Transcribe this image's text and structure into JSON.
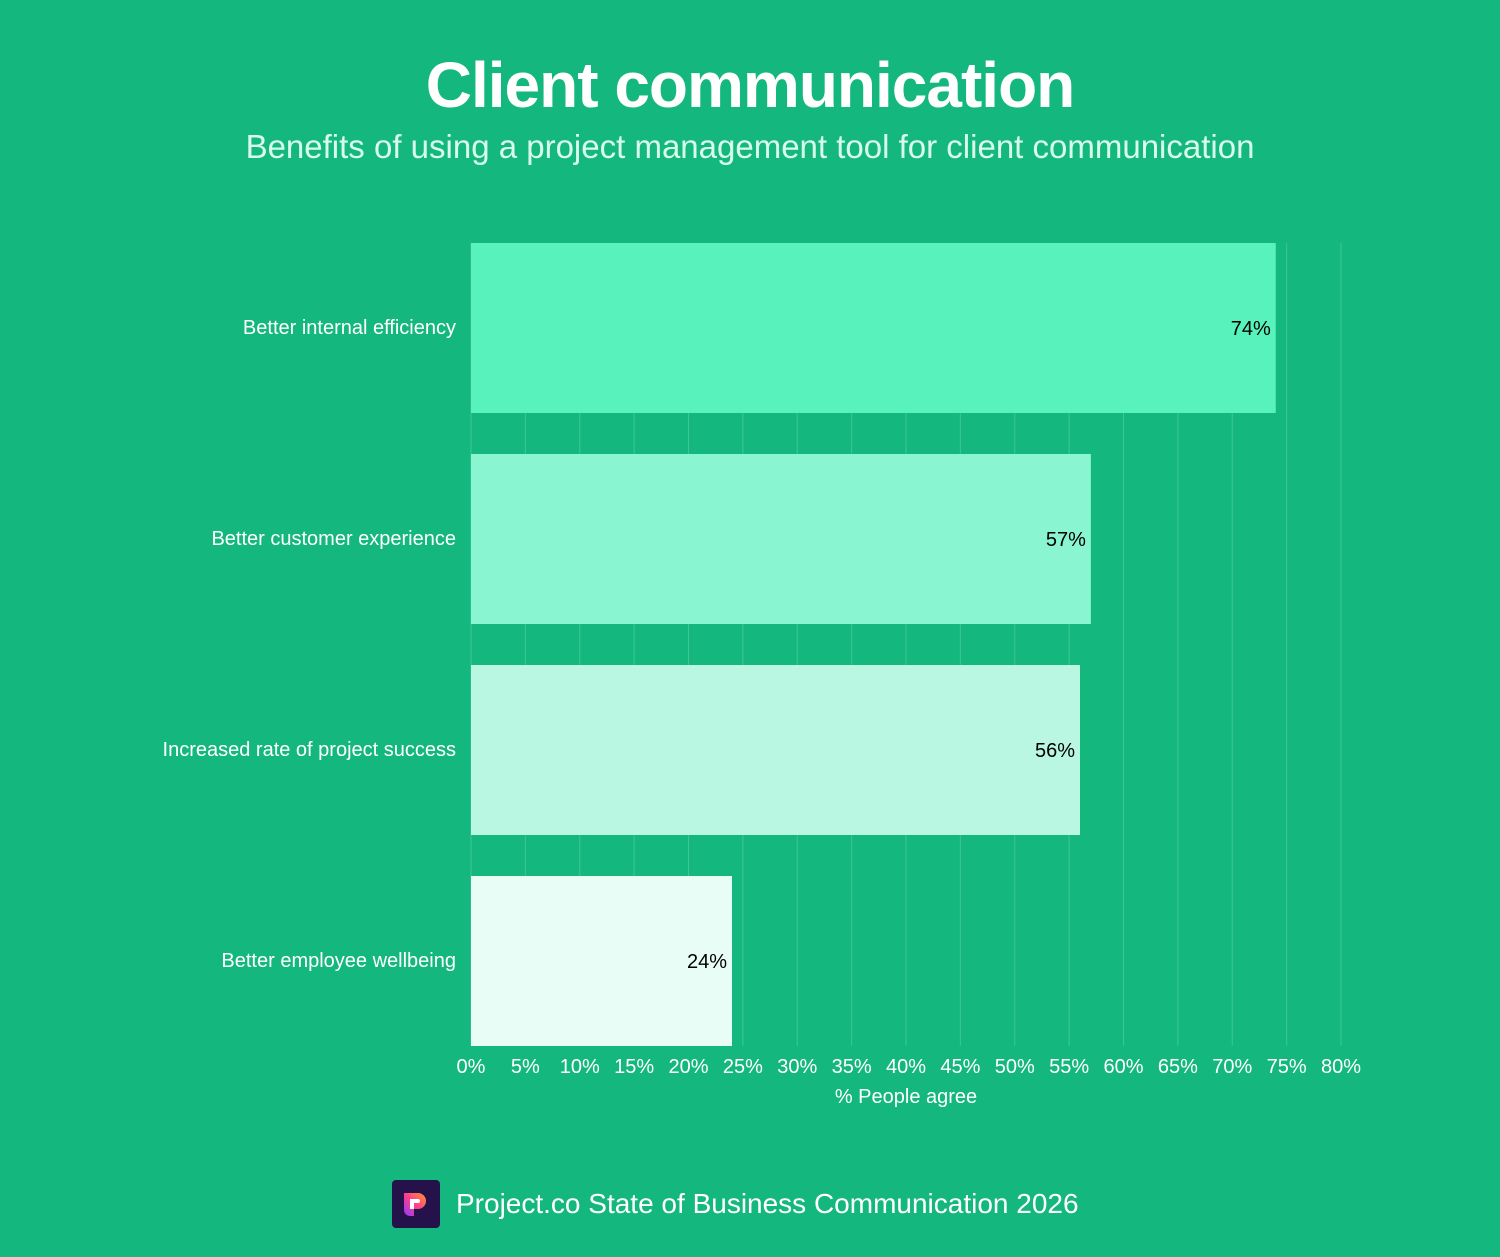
{
  "chart_data": {
    "type": "bar",
    "orientation": "horizontal",
    "title": "Client communication",
    "subtitle": "Benefits of using a project management tool for client communication",
    "categories": [
      "Better internal efficiency",
      "Better customer experience",
      "Increased rate of project success",
      "Better employee wellbeing"
    ],
    "values": [
      74,
      57,
      56,
      24
    ],
    "data_labels": [
      "74%",
      "57%",
      "56%",
      "24%"
    ],
    "bar_colors": [
      "#58f2bd",
      "#8af5d1",
      "#baf7e2",
      "#e8fdf5"
    ],
    "xlabel": "% People agree",
    "ylabel": "",
    "xlim": [
      0,
      80
    ],
    "xticks": [
      0,
      5,
      10,
      15,
      20,
      25,
      30,
      35,
      40,
      45,
      50,
      55,
      60,
      65,
      70,
      75,
      80
    ],
    "xtick_labels": [
      "0%",
      "5%",
      "10%",
      "15%",
      "20%",
      "25%",
      "30%",
      "35%",
      "40%",
      "45%",
      "50%",
      "55%",
      "60%",
      "65%",
      "70%",
      "75%",
      "80%"
    ],
    "grid": true
  },
  "footer": {
    "source": "Project.co State of Business Communication 2026",
    "logo": "project-co-logo"
  },
  "colors": {
    "background": "#14b87f"
  }
}
